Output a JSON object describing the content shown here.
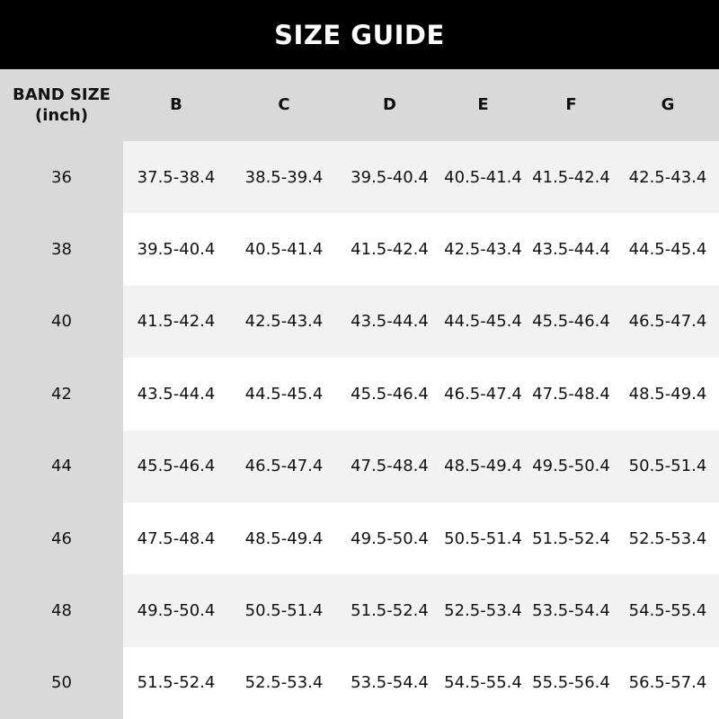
{
  "title": "SIZE GUIDE",
  "table": {
    "band_header_line1": "BAND SIZE",
    "band_header_line2": "(inch)",
    "cup_headers": [
      "B",
      "C",
      "D",
      "E",
      "F",
      "G"
    ],
    "rows": [
      {
        "band": "36",
        "values": [
          "37.5-38.4",
          "38.5-39.4",
          "39.5-40.4",
          "40.5-41.4",
          "41.5-42.4",
          "42.5-43.4"
        ]
      },
      {
        "band": "38",
        "values": [
          "39.5-40.4",
          "40.5-41.4",
          "41.5-42.4",
          "42.5-43.4",
          "43.5-44.4",
          "44.5-45.4"
        ]
      },
      {
        "band": "40",
        "values": [
          "41.5-42.4",
          "42.5-43.4",
          "43.5-44.4",
          "44.5-45.4",
          "45.5-46.4",
          "46.5-47.4"
        ]
      },
      {
        "band": "42",
        "values": [
          "43.5-44.4",
          "44.5-45.4",
          "45.5-46.4",
          "46.5-47.4",
          "47.5-48.4",
          "48.5-49.4"
        ]
      },
      {
        "band": "44",
        "values": [
          "45.5-46.4",
          "46.5-47.4",
          "47.5-48.4",
          "48.5-49.4",
          "49.5-50.4",
          "50.5-51.4"
        ]
      },
      {
        "band": "46",
        "values": [
          "47.5-48.4",
          "48.5-49.4",
          "49.5-50.4",
          "50.5-51.4",
          "51.5-52.4",
          "52.5-53.4"
        ]
      },
      {
        "band": "48",
        "values": [
          "49.5-50.4",
          "50.5-51.4",
          "51.5-52.4",
          "52.5-53.4",
          "53.5-54.4",
          "54.5-55.4"
        ]
      },
      {
        "band": "50",
        "values": [
          "51.5-52.4",
          "52.5-53.4",
          "53.5-54.4",
          "54.5-55.4",
          "55.5-56.4",
          "56.5-57.4"
        ]
      }
    ]
  },
  "colors": {
    "title_bg": "#000000",
    "header_bg": "#d9d9d9",
    "row_alt": "#f2f2f2",
    "row": "#ffffff"
  }
}
